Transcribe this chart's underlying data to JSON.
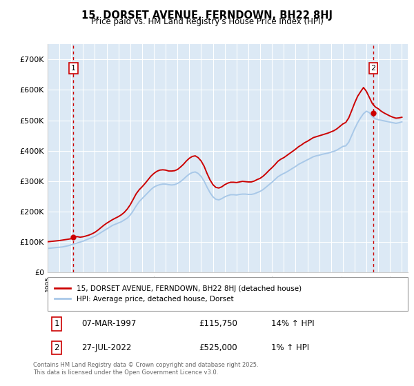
{
  "title": "15, DORSET AVENUE, FERNDOWN, BH22 8HJ",
  "subtitle": "Price paid vs. HM Land Registry's House Price Index (HPI)",
  "ylabel_ticks": [
    "£0",
    "£100K",
    "£200K",
    "£300K",
    "£400K",
    "£500K",
    "£600K",
    "£700K"
  ],
  "ytick_values": [
    0,
    100000,
    200000,
    300000,
    400000,
    500000,
    600000,
    700000
  ],
  "ylim": [
    0,
    750000
  ],
  "xlim_start": 1995.0,
  "xlim_end": 2025.5,
  "background_color": "#dce9f5",
  "grid_color": "#ffffff",
  "line_color_hpi": "#a8c8e8",
  "line_color_price": "#cc0000",
  "marker_color": "#cc0000",
  "annotation_box_color": "#cc0000",
  "dashed_line_color": "#cc0000",
  "legend_label_price": "15, DORSET AVENUE, FERNDOWN, BH22 8HJ (detached house)",
  "legend_label_hpi": "HPI: Average price, detached house, Dorset",
  "point1_label": "1",
  "point1_date": "07-MAR-1997",
  "point1_price": "£115,750",
  "point1_hpi": "14% ↑ HPI",
  "point1_x": 1997.18,
  "point1_y": 115750,
  "point2_label": "2",
  "point2_date": "27-JUL-2022",
  "point2_price": "£525,000",
  "point2_hpi": "1% ↑ HPI",
  "point2_x": 2022.57,
  "point2_y": 525000,
  "footer": "Contains HM Land Registry data © Crown copyright and database right 2025.\nThis data is licensed under the Open Government Licence v3.0.",
  "hpi_data_x": [
    1995.0,
    1995.25,
    1995.5,
    1995.75,
    1996.0,
    1996.25,
    1996.5,
    1996.75,
    1997.0,
    1997.25,
    1997.5,
    1997.75,
    1998.0,
    1998.25,
    1998.5,
    1998.75,
    1999.0,
    1999.25,
    1999.5,
    1999.75,
    2000.0,
    2000.25,
    2000.5,
    2000.75,
    2001.0,
    2001.25,
    2001.5,
    2001.75,
    2002.0,
    2002.25,
    2002.5,
    2002.75,
    2003.0,
    2003.25,
    2003.5,
    2003.75,
    2004.0,
    2004.25,
    2004.5,
    2004.75,
    2005.0,
    2005.25,
    2005.5,
    2005.75,
    2006.0,
    2006.25,
    2006.5,
    2006.75,
    2007.0,
    2007.25,
    2007.5,
    2007.75,
    2008.0,
    2008.25,
    2008.5,
    2008.75,
    2009.0,
    2009.25,
    2009.5,
    2009.75,
    2010.0,
    2010.25,
    2010.5,
    2010.75,
    2011.0,
    2011.25,
    2011.5,
    2011.75,
    2012.0,
    2012.25,
    2012.5,
    2012.75,
    2013.0,
    2013.25,
    2013.5,
    2013.75,
    2014.0,
    2014.25,
    2014.5,
    2014.75,
    2015.0,
    2015.25,
    2015.5,
    2015.75,
    2016.0,
    2016.25,
    2016.5,
    2016.75,
    2017.0,
    2017.25,
    2017.5,
    2017.75,
    2018.0,
    2018.25,
    2018.5,
    2018.75,
    2019.0,
    2019.25,
    2019.5,
    2019.75,
    2020.0,
    2020.25,
    2020.5,
    2020.75,
    2021.0,
    2021.25,
    2021.5,
    2021.75,
    2022.0,
    2022.25,
    2022.5,
    2022.75,
    2023.0,
    2023.25,
    2023.5,
    2023.75,
    2024.0,
    2024.25,
    2024.5,
    2024.75,
    2025.0
  ],
  "hpi_data_y": [
    78000,
    79000,
    80000,
    81000,
    82000,
    83000,
    85000,
    87000,
    90000,
    93000,
    96000,
    99000,
    102000,
    106000,
    110000,
    114000,
    118000,
    124000,
    130000,
    136000,
    142000,
    148000,
    154000,
    158000,
    162000,
    166000,
    172000,
    178000,
    188000,
    202000,
    218000,
    232000,
    242000,
    252000,
    262000,
    272000,
    280000,
    285000,
    288000,
    290000,
    290000,
    288000,
    287000,
    288000,
    292000,
    298000,
    306000,
    315000,
    323000,
    328000,
    330000,
    325000,
    315000,
    300000,
    280000,
    262000,
    248000,
    240000,
    238000,
    242000,
    248000,
    252000,
    255000,
    255000,
    254000,
    256000,
    257000,
    257000,
    256000,
    256000,
    258000,
    262000,
    266000,
    272000,
    280000,
    288000,
    296000,
    305000,
    314000,
    320000,
    325000,
    330000,
    336000,
    342000,
    348000,
    355000,
    360000,
    365000,
    370000,
    375000,
    380000,
    383000,
    385000,
    388000,
    390000,
    392000,
    395000,
    398000,
    402000,
    408000,
    414000,
    416000,
    428000,
    450000,
    472000,
    492000,
    508000,
    522000,
    530000,
    525000,
    512000,
    505000,
    502000,
    500000,
    498000,
    496000,
    494000,
    492000,
    490000,
    492000,
    495000
  ],
  "price_data_x": [
    1995.0,
    1995.25,
    1995.5,
    1995.75,
    1996.0,
    1996.25,
    1996.5,
    1996.75,
    1997.0,
    1997.25,
    1997.5,
    1997.75,
    1998.0,
    1998.25,
    1998.5,
    1998.75,
    1999.0,
    1999.25,
    1999.5,
    1999.75,
    2000.0,
    2000.25,
    2000.5,
    2000.75,
    2001.0,
    2001.25,
    2001.5,
    2001.75,
    2002.0,
    2002.25,
    2002.5,
    2002.75,
    2003.0,
    2003.25,
    2003.5,
    2003.75,
    2004.0,
    2004.25,
    2004.5,
    2004.75,
    2005.0,
    2005.25,
    2005.5,
    2005.75,
    2006.0,
    2006.25,
    2006.5,
    2006.75,
    2007.0,
    2007.25,
    2007.5,
    2007.75,
    2008.0,
    2008.25,
    2008.5,
    2008.75,
    2009.0,
    2009.25,
    2009.5,
    2009.75,
    2010.0,
    2010.25,
    2010.5,
    2010.75,
    2011.0,
    2011.25,
    2011.5,
    2011.75,
    2012.0,
    2012.25,
    2012.5,
    2012.75,
    2013.0,
    2013.25,
    2013.5,
    2013.75,
    2014.0,
    2014.25,
    2014.5,
    2014.75,
    2015.0,
    2015.25,
    2015.5,
    2015.75,
    2016.0,
    2016.25,
    2016.5,
    2016.75,
    2017.0,
    2017.25,
    2017.5,
    2017.75,
    2018.0,
    2018.25,
    2018.5,
    2018.75,
    2019.0,
    2019.25,
    2019.5,
    2019.75,
    2020.0,
    2020.25,
    2020.5,
    2020.75,
    2021.0,
    2021.25,
    2021.5,
    2021.75,
    2022.0,
    2022.25,
    2022.5,
    2022.75,
    2023.0,
    2023.25,
    2023.5,
    2023.75,
    2024.0,
    2024.25,
    2024.5,
    2024.75,
    2025.0
  ],
  "price_data_y": [
    100000,
    101000,
    102000,
    103000,
    104000,
    105500,
    107000,
    108500,
    110000,
    115750,
    117000,
    115000,
    116500,
    119000,
    122000,
    126000,
    131000,
    138000,
    146000,
    154000,
    161000,
    167000,
    173000,
    178000,
    183000,
    189000,
    197000,
    208000,
    222000,
    240000,
    258000,
    271000,
    281000,
    292000,
    304000,
    316000,
    325000,
    332000,
    336000,
    337000,
    336000,
    333000,
    333000,
    334000,
    338000,
    346000,
    355000,
    366000,
    375000,
    381000,
    383000,
    377000,
    366000,
    349000,
    325000,
    304000,
    288000,
    279000,
    277000,
    281000,
    288000,
    293000,
    296000,
    296000,
    295000,
    297000,
    299000,
    298000,
    297000,
    297000,
    300000,
    305000,
    309000,
    316000,
    325000,
    335000,
    344000,
    354000,
    365000,
    372000,
    377000,
    384000,
    391000,
    398000,
    405000,
    413000,
    419000,
    426000,
    431000,
    437000,
    443000,
    446000,
    449000,
    452000,
    455000,
    458000,
    462000,
    466000,
    472000,
    480000,
    488000,
    493000,
    508000,
    532000,
    557000,
    579000,
    594000,
    608000,
    595000,
    575000,
    555000,
    544000,
    538000,
    530000,
    524000,
    519000,
    514000,
    510000,
    507000,
    508000,
    510000
  ]
}
